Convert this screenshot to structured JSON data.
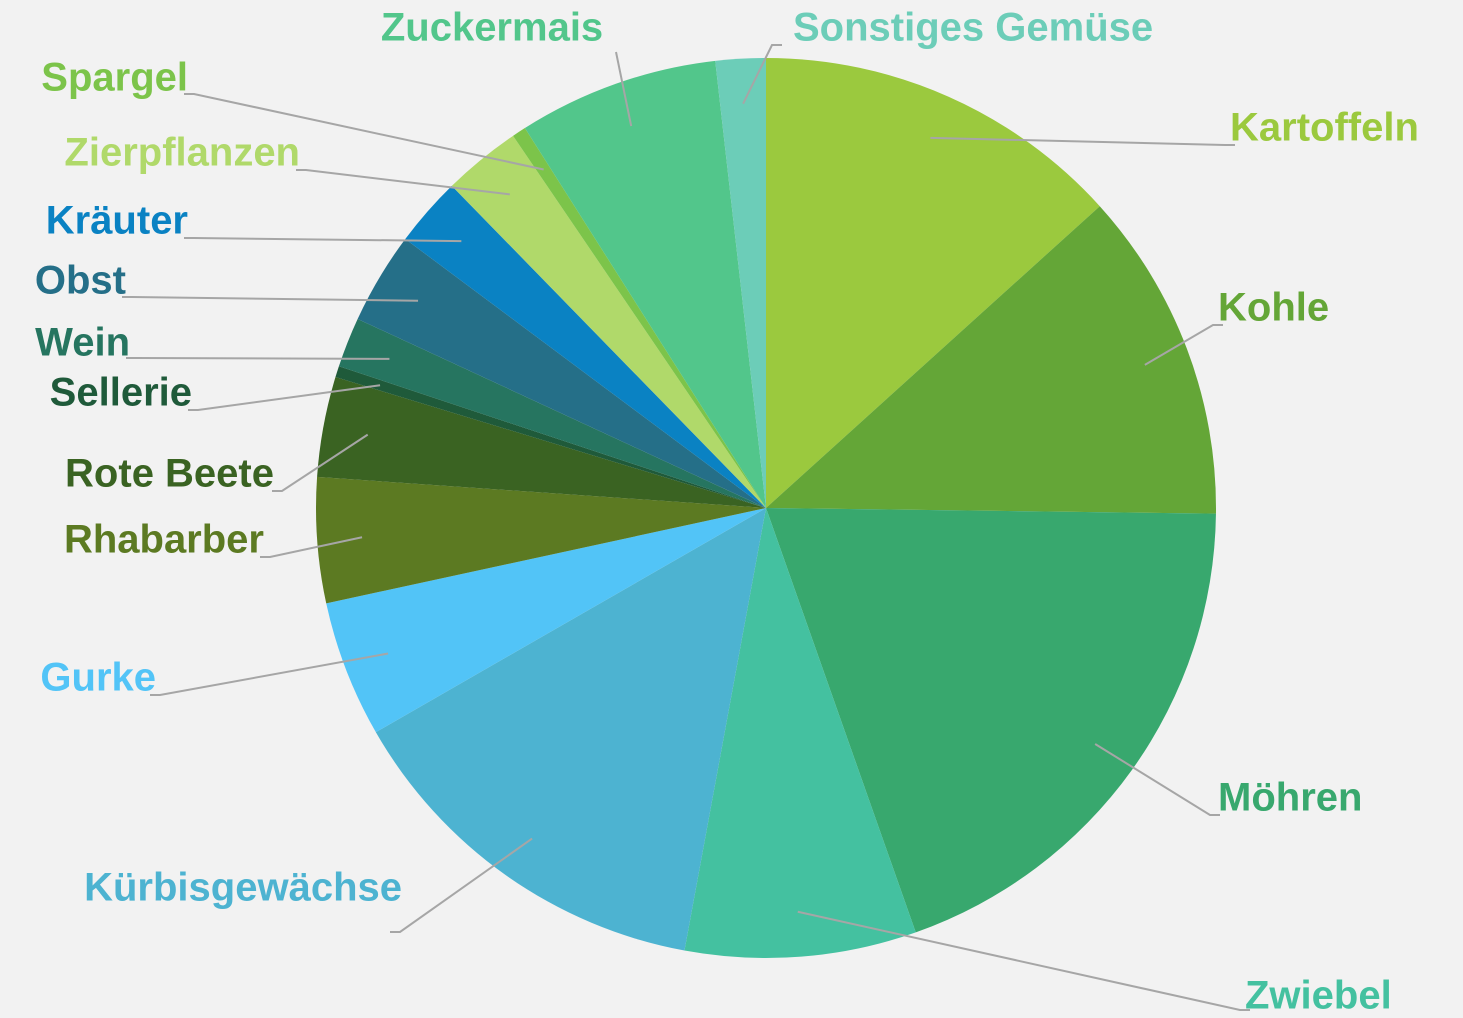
{
  "chart_data": {
    "type": "pie",
    "categories": [
      "Kartoffeln",
      "Kohle",
      "Möhren",
      "Zwiebel",
      "Kürbisgewächse",
      "Gurke",
      "Rhabarber",
      "Rote Beete",
      "Sellerie",
      "Wein",
      "Obst",
      "Kräuter",
      "Zierpflanzen",
      "Spargel",
      "Zuckermais",
      "Sonstiges Gemüse"
    ],
    "values": [
      13.3,
      11.9,
      19.4,
      8.3,
      13.8,
      4.9,
      4.5,
      3.6,
      0.4,
      1.8,
      3.3,
      2.5,
      2.8,
      0.5,
      7.2,
      1.8
    ],
    "colors": [
      "#9bc93e",
      "#64a637",
      "#38a86e",
      "#44c1a0",
      "#4db3d1",
      "#52c4f7",
      "#5c7a22",
      "#3a6322",
      "#1f5a3a",
      "#267560",
      "#256f88",
      "#0a82c3",
      "#b0d96a",
      "#7cc44a",
      "#52c68b",
      "#6ccdb8"
    ]
  }
}
